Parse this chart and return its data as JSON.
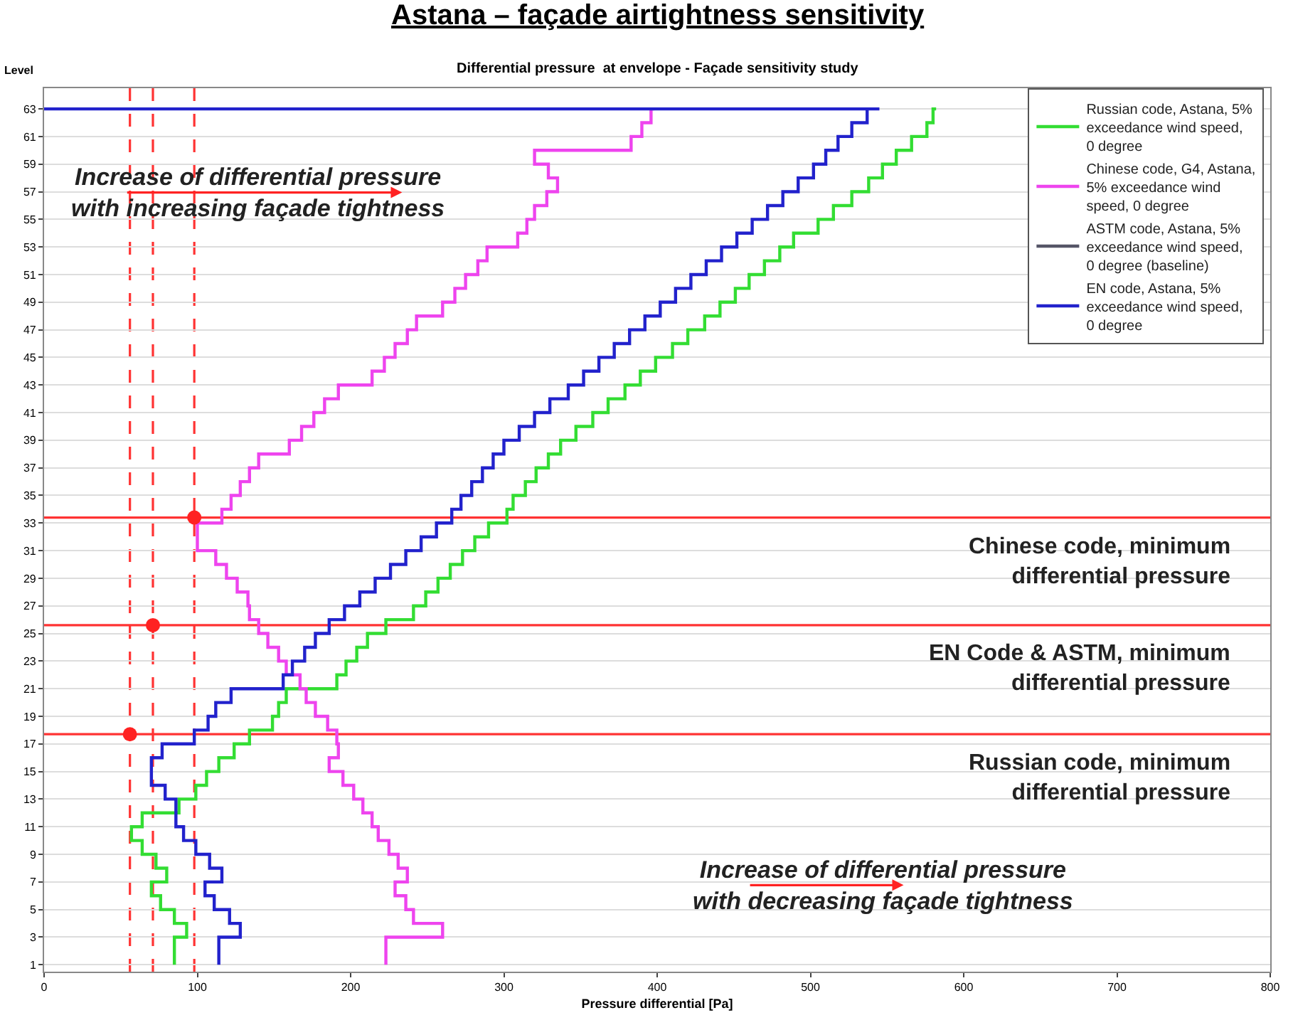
{
  "chart_data": {
    "type": "step",
    "title": "Astana – façade airtightness sensitivity",
    "subtitle": "Differential pressure  at envelope - Façade sensitivity study",
    "xlabel": "Pressure differential [Pa]",
    "ylabel": "Level",
    "xlim": [
      0,
      800
    ],
    "xticks": [
      0,
      100,
      200,
      300,
      400,
      500,
      600,
      700,
      800
    ],
    "ylim": [
      0.5,
      64.5
    ],
    "yticks": [
      1,
      3,
      5,
      7,
      9,
      11,
      13,
      15,
      17,
      19,
      21,
      23,
      25,
      27,
      29,
      31,
      33,
      35,
      37,
      39,
      41,
      43,
      45,
      47,
      49,
      51,
      53,
      55,
      57,
      59,
      61,
      63
    ],
    "grid": "y",
    "legend": "top right",
    "series": [
      {
        "name": "Russian code, Astana, 5%\nexceedance wind speed,\n0 degree",
        "color": "#33dd33",
        "x": [
          85,
          85,
          93,
          85,
          76,
          70,
          80,
          73,
          64,
          57,
          64,
          88,
          99,
          106,
          114,
          124,
          134,
          149,
          153,
          158,
          191,
          197,
          204,
          211,
          223,
          241,
          249,
          257,
          265,
          273,
          281,
          290,
          302,
          306,
          314,
          321,
          329,
          337,
          347,
          358,
          368,
          379,
          389,
          399,
          410,
          420,
          431,
          441,
          451,
          460,
          470,
          480,
          489,
          505,
          515,
          527,
          538,
          547,
          556,
          566,
          576,
          580,
          582
        ],
        "values": [
          1,
          2,
          3,
          4,
          5,
          6,
          7,
          8,
          9,
          10,
          11,
          12,
          13,
          14,
          15,
          16,
          17,
          18,
          19,
          20,
          21,
          22,
          23,
          24,
          25,
          26,
          27,
          28,
          29,
          30,
          31,
          32,
          33,
          34,
          35,
          36,
          37,
          38,
          39,
          40,
          41,
          42,
          43,
          44,
          45,
          46,
          47,
          48,
          49,
          50,
          51,
          52,
          53,
          54,
          55,
          56,
          57,
          58,
          59,
          60,
          61,
          62,
          63
        ]
      },
      {
        "name": "Chinese code, G4, Astana,\n5% exceedance wind\nspeed, 0 degree",
        "color": "#ee44ee",
        "x": [
          223,
          223,
          260,
          241,
          236,
          229,
          237,
          231,
          225,
          218,
          214,
          208,
          202,
          195,
          186,
          192,
          191,
          185,
          177,
          171,
          167,
          158,
          153,
          146,
          140,
          134,
          133,
          126,
          119,
          112,
          100,
          100,
          116,
          122,
          128,
          134,
          140,
          160,
          168,
          176,
          183,
          192,
          214,
          222,
          229,
          237,
          243,
          260,
          268,
          275,
          283,
          289,
          309,
          315,
          320,
          328,
          335,
          329,
          320,
          383,
          390,
          396,
          398
        ],
        "values": [
          1,
          2,
          3,
          4,
          5,
          6,
          7,
          8,
          9,
          10,
          11,
          12,
          13,
          14,
          15,
          16,
          17,
          18,
          19,
          20,
          21,
          22,
          23,
          24,
          25,
          26,
          27,
          28,
          29,
          30,
          31,
          32,
          33,
          34,
          35,
          36,
          37,
          38,
          39,
          40,
          41,
          42,
          43,
          44,
          45,
          46,
          47,
          48,
          49,
          50,
          51,
          52,
          53,
          54,
          55,
          56,
          57,
          58,
          59,
          60,
          61,
          62,
          63
        ]
      },
      {
        "name": "ASTM code, Astana, 5%\nexceedance wind speed,\n0 degree (baseline)",
        "color": "#555566"
      },
      {
        "name": "EN code, Astana, 5%\nexceedance wind speed,\n0 degree",
        "color": "#2222cc",
        "x": [
          114,
          114,
          128,
          121,
          111,
          105,
          116,
          108,
          99,
          91,
          86,
          86,
          79,
          70,
          70,
          77,
          98,
          107,
          112,
          122,
          156,
          162,
          170,
          177,
          186,
          196,
          206,
          216,
          226,
          236,
          246,
          256,
          266,
          272,
          279,
          286,
          293,
          300,
          310,
          320,
          330,
          342,
          352,
          362,
          372,
          382,
          392,
          402,
          412,
          422,
          432,
          442,
          452,
          462,
          472,
          482,
          492,
          502,
          510,
          518,
          527,
          537,
          545,
          0
        ],
        "values": [
          1,
          2,
          3,
          4,
          5,
          6,
          7,
          8,
          9,
          10,
          11,
          12,
          13,
          14,
          15,
          16,
          17,
          18,
          19,
          20,
          21,
          22,
          23,
          24,
          25,
          26,
          27,
          28,
          29,
          30,
          31,
          32,
          33,
          34,
          35,
          36,
          37,
          38,
          39,
          40,
          41,
          42,
          43,
          44,
          45,
          46,
          47,
          48,
          49,
          50,
          51,
          52,
          53,
          54,
          55,
          56,
          57,
          58,
          59,
          60,
          61,
          62,
          63,
          63
        ]
      },
      {
        "type": "scatter",
        "color": "#ff2222",
        "x": [
          98,
          71,
          56
        ],
        "values": [
          33.4,
          25.6,
          17.7
        ]
      }
    ],
    "ref_lines": [
      {
        "axis": "y",
        "value": 33.4,
        "label": "Chinese code, minimum\ndifferential pressure",
        "color": "#ff3333"
      },
      {
        "axis": "y",
        "value": 25.6,
        "label": "EN Code & ASTM, minimum\ndifferential pressure",
        "color": "#ff3333"
      },
      {
        "axis": "y",
        "value": 17.7,
        "label": "Russian code, minimum\ndifferential pressure",
        "color": "#ff3333"
      },
      {
        "axis": "x",
        "value": 56,
        "color": "#ff3333",
        "line_style": "dashed"
      },
      {
        "axis": "x",
        "value": 71,
        "color": "#ff3333",
        "line_style": "dashed"
      },
      {
        "axis": "x",
        "value": 98,
        "color": "#ff3333",
        "line_style": "dashed"
      }
    ],
    "annotations": [
      "Increase of differential pressure\nwith increasing façade tightness",
      "Increase of differential pressure\nwith decreasing façade tightness"
    ]
  }
}
